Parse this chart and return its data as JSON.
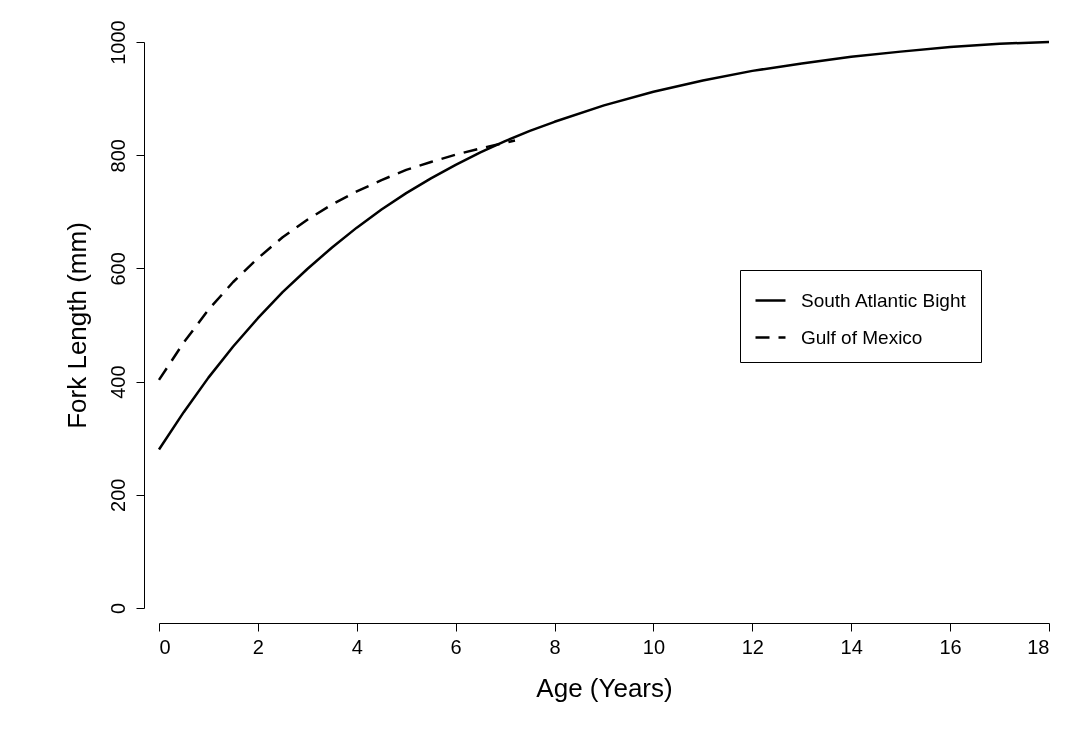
{
  "chart_data": {
    "type": "line",
    "xlabel": "Age (Years)",
    "ylabel": "Fork Length (mm)",
    "xlim": [
      0,
      18
    ],
    "xticks": [
      0,
      2,
      4,
      6,
      8,
      10,
      12,
      14,
      16,
      18
    ],
    "ylim": [
      0,
      1000
    ],
    "yticks": [
      0,
      200,
      400,
      600,
      800,
      1000
    ],
    "grid": false,
    "legend": "right",
    "series": [
      {
        "name": "South Atlantic Bight",
        "color": "#000000",
        "line_style": "solid",
        "x": [
          0,
          0.5,
          1,
          1.5,
          2,
          2.5,
          3,
          3.5,
          4,
          4.5,
          5,
          5.5,
          6,
          6.5,
          7,
          7.5,
          8,
          9,
          10,
          11,
          12,
          13,
          14,
          15,
          16,
          17,
          18
        ],
        "values": [
          280,
          346,
          407,
          462,
          512,
          558,
          599,
          637,
          672,
          704,
          733,
          759,
          783,
          805,
          825,
          843,
          859,
          888,
          912,
          932,
          949,
          962,
          974,
          983,
          991,
          997,
          1000
        ]
      },
      {
        "name": "Gulf of Mexico",
        "color": "#000000",
        "line_style": "dashed",
        "x": [
          0,
          0.5,
          1,
          1.5,
          2,
          2.5,
          3,
          3.5,
          4,
          4.5,
          5,
          5.5,
          6,
          6.5,
          7,
          7.2
        ],
        "values": [
          403,
          469,
          527,
          576,
          618,
          655,
          686,
          713,
          736,
          756,
          774,
          788,
          801,
          812,
          822,
          826
        ]
      }
    ]
  }
}
